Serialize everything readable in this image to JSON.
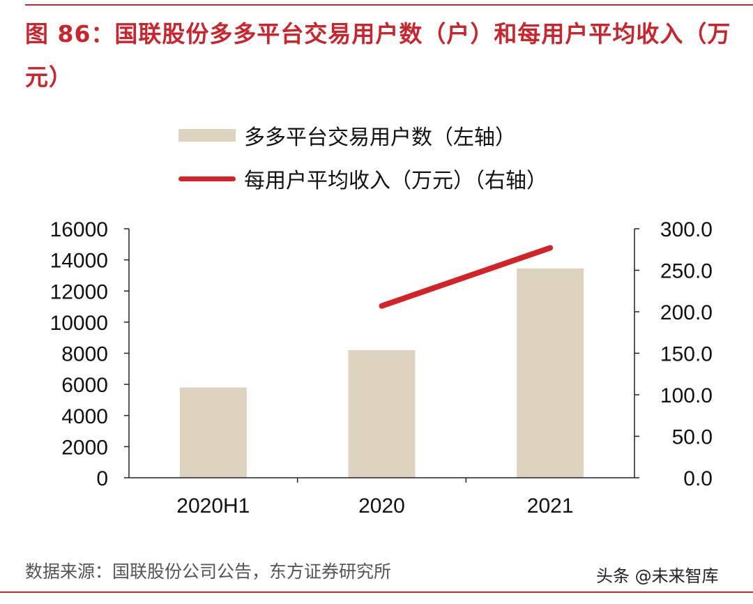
{
  "figure": {
    "title": "图 86：国联股份多多平台交易用户数（户）和每用户平均收入（万元）",
    "source": "数据来源：国联股份公司公告，东方证券研究所",
    "watermark": "头条 @未来智库"
  },
  "colors": {
    "accent": "#c9252c",
    "bar": "#ddd3bf",
    "line": "#d42226",
    "axis": "#222222"
  },
  "chart_data": {
    "type": "bar",
    "categories": [
      "2020H1",
      "2020",
      "2021"
    ],
    "series": [
      {
        "name": "多多平台交易用户数（左轴）",
        "type": "bar",
        "axis": "left",
        "values": [
          5800,
          8200,
          13450
        ]
      },
      {
        "name": "每用户平均收入（万元）（右轴）",
        "type": "line",
        "axis": "right",
        "values": [
          null,
          207,
          277
        ]
      }
    ],
    "y_left": {
      "range": [
        0,
        16000
      ],
      "ticks": [
        "0",
        "2000",
        "4000",
        "6000",
        "8000",
        "10000",
        "12000",
        "14000",
        "16000"
      ]
    },
    "y_right": {
      "range": [
        0,
        300
      ],
      "ticks": [
        "0.0",
        "50.0",
        "100.0",
        "150.0",
        "200.0",
        "250.0",
        "300.0"
      ]
    },
    "legend_position": "top"
  }
}
